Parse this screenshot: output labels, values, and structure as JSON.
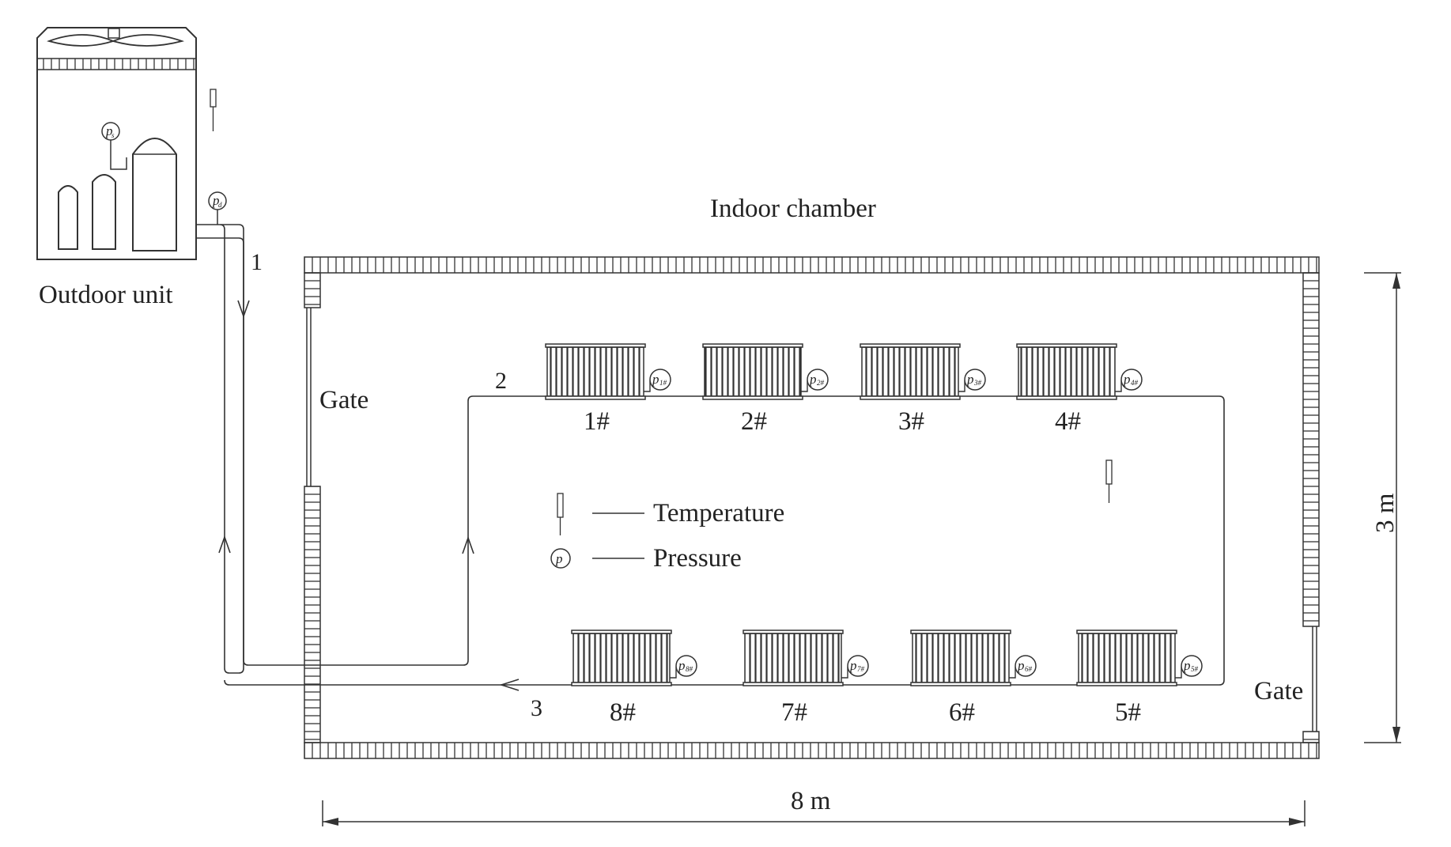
{
  "labels": {
    "outdoor_unit": "Outdoor unit",
    "indoor_chamber": "Indoor chamber",
    "gate_left": "Gate",
    "gate_right": "Gate",
    "width_dim": "8 m",
    "height_dim": "3 m",
    "pipe_1": "1",
    "pipe_2": "2",
    "pipe_3": "3"
  },
  "legend": {
    "temperature": "Temperature",
    "pressure": "Pressure",
    "pressure_symbol": "p"
  },
  "outdoor_gauges": {
    "suction": {
      "symbol": "p",
      "subscript": "s"
    },
    "discharge": {
      "symbol": "p",
      "subscript": "d"
    }
  },
  "radiators_top": [
    {
      "label": "1#",
      "gauge": "p",
      "gauge_sub": "1#"
    },
    {
      "label": "2#",
      "gauge": "p",
      "gauge_sub": "2#"
    },
    {
      "label": "3#",
      "gauge": "p",
      "gauge_sub": "3#"
    },
    {
      "label": "4#",
      "gauge": "p",
      "gauge_sub": "4#"
    }
  ],
  "radiators_bottom": [
    {
      "label": "8#",
      "gauge": "p",
      "gauge_sub": "8#"
    },
    {
      "label": "7#",
      "gauge": "p",
      "gauge_sub": "7#"
    },
    {
      "label": "6#",
      "gauge": "p",
      "gauge_sub": "6#"
    },
    {
      "label": "5#",
      "gauge": "p",
      "gauge_sub": "5#"
    }
  ]
}
